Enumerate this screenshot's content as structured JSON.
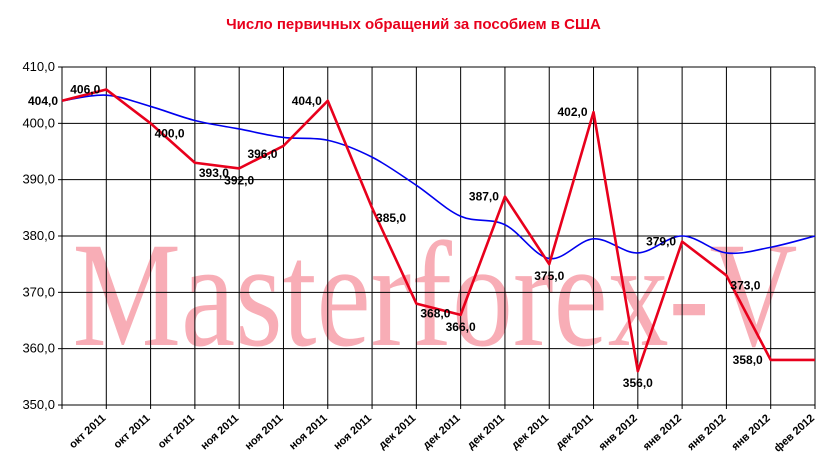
{
  "chart_data": {
    "type": "line",
    "title": "Число первичных обращений за пособием в США",
    "watermark": "Masterforex-V",
    "ylim": [
      350,
      410
    ],
    "yticks": [
      "350,0",
      "360,0",
      "370,0",
      "380,0",
      "390,0",
      "400,0",
      "410,0"
    ],
    "grid": true,
    "categories": [
      "окт 2011",
      "окт 2011",
      "окт 2011",
      "ноя 2011",
      "ноя 2011",
      "ноя 2011",
      "ноя 2011",
      "дек 2011",
      "дек 2011",
      "дек 2011",
      "дек 2011",
      "дек 2011",
      "янв 2012",
      "янв 2012",
      "янв 2012",
      "янв 2012",
      "фев 2012"
    ],
    "series": [
      {
        "color": "#e8001c",
        "x": [
          0,
          1,
          2,
          3,
          4,
          5,
          6,
          7,
          8,
          9,
          10,
          11,
          12,
          13,
          14,
          15,
          16,
          17
        ],
        "values": [
          404.0,
          406.0,
          400.0,
          393.0,
          392.0,
          396.0,
          404.0,
          385.0,
          368.0,
          366.0,
          387.0,
          375.0,
          402.0,
          356.0,
          379.0,
          373.0,
          358.0,
          358.0
        ],
        "labels": [
          "404,0",
          "406,0",
          "400,0",
          "393,0",
          "392,0",
          "396,0",
          "404,0",
          "385,0",
          "368,0",
          "366,0",
          "387,0",
          "375,0",
          "402,0",
          "356,0",
          "379,0",
          "373,0",
          "358,0",
          ""
        ]
      },
      {
        "color": "#0000ee",
        "x": [
          0,
          1,
          2,
          3,
          4,
          5,
          6,
          7,
          8,
          9,
          10,
          11,
          12,
          13,
          14,
          15,
          16,
          17
        ],
        "values": [
          404.0,
          405.0,
          403.0,
          400.5,
          399.0,
          397.5,
          397.0,
          394.0,
          389.0,
          383.5,
          382.0,
          376.0,
          379.5,
          377.0,
          380.0,
          377.0,
          378.0,
          380.0
        ]
      }
    ]
  }
}
